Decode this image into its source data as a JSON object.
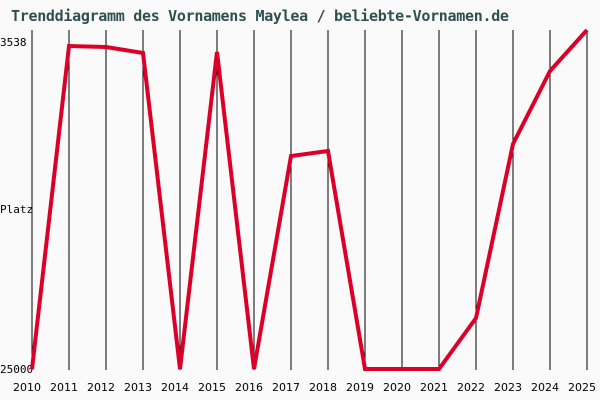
{
  "chart_data": {
    "type": "line",
    "title": "Trenddiagramm des Vornamens Maylea / beliebte-Vornamen.de",
    "xlabel": "",
    "ylabel": "Platz",
    "y_inverted": true,
    "ylim": [
      25000,
      3538
    ],
    "y_tick_labels": [
      "3538",
      "25000"
    ],
    "grid": "vertical",
    "line_color": "#dc0028",
    "categories": [
      "2010",
      "2011",
      "2012",
      "2013",
      "2014",
      "2015",
      "2016",
      "2017",
      "2018",
      "2019",
      "2020",
      "2021",
      "2022",
      "2023",
      "2024",
      "2025"
    ],
    "series": [
      {
        "name": "Maylea",
        "values": [
          25000,
          4551,
          4614,
          4994,
          25000,
          4931,
          25000,
          11515,
          11198,
          25000,
          25000,
          25000,
          21771,
          10755,
          6134,
          3538
        ]
      }
    ]
  }
}
